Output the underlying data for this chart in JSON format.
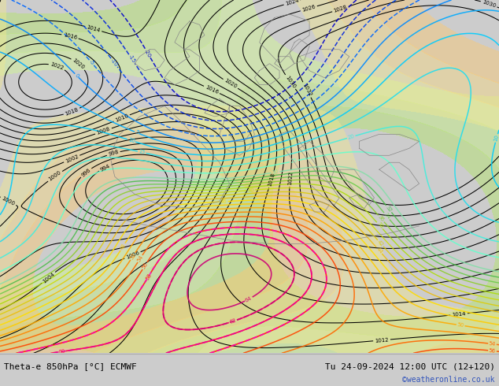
{
  "title_left": "Theta-e 850hPa [°C] ECMWF",
  "title_right": "Tu 24-09-2024 12:00 UTC (12+120)",
  "credit": "©weatheronline.co.uk",
  "bg_color": "#c8c8c8",
  "map_bg": "#d8d8d8",
  "bottom_bar_color": "#ffffff",
  "figsize": [
    6.34,
    4.9
  ],
  "dpi": 100,
  "land_color": "#d0d0d0",
  "sea_color": "#c0c8d0",
  "green_region_color": "#c8e8a0",
  "light_green_color": "#d8f0b0"
}
